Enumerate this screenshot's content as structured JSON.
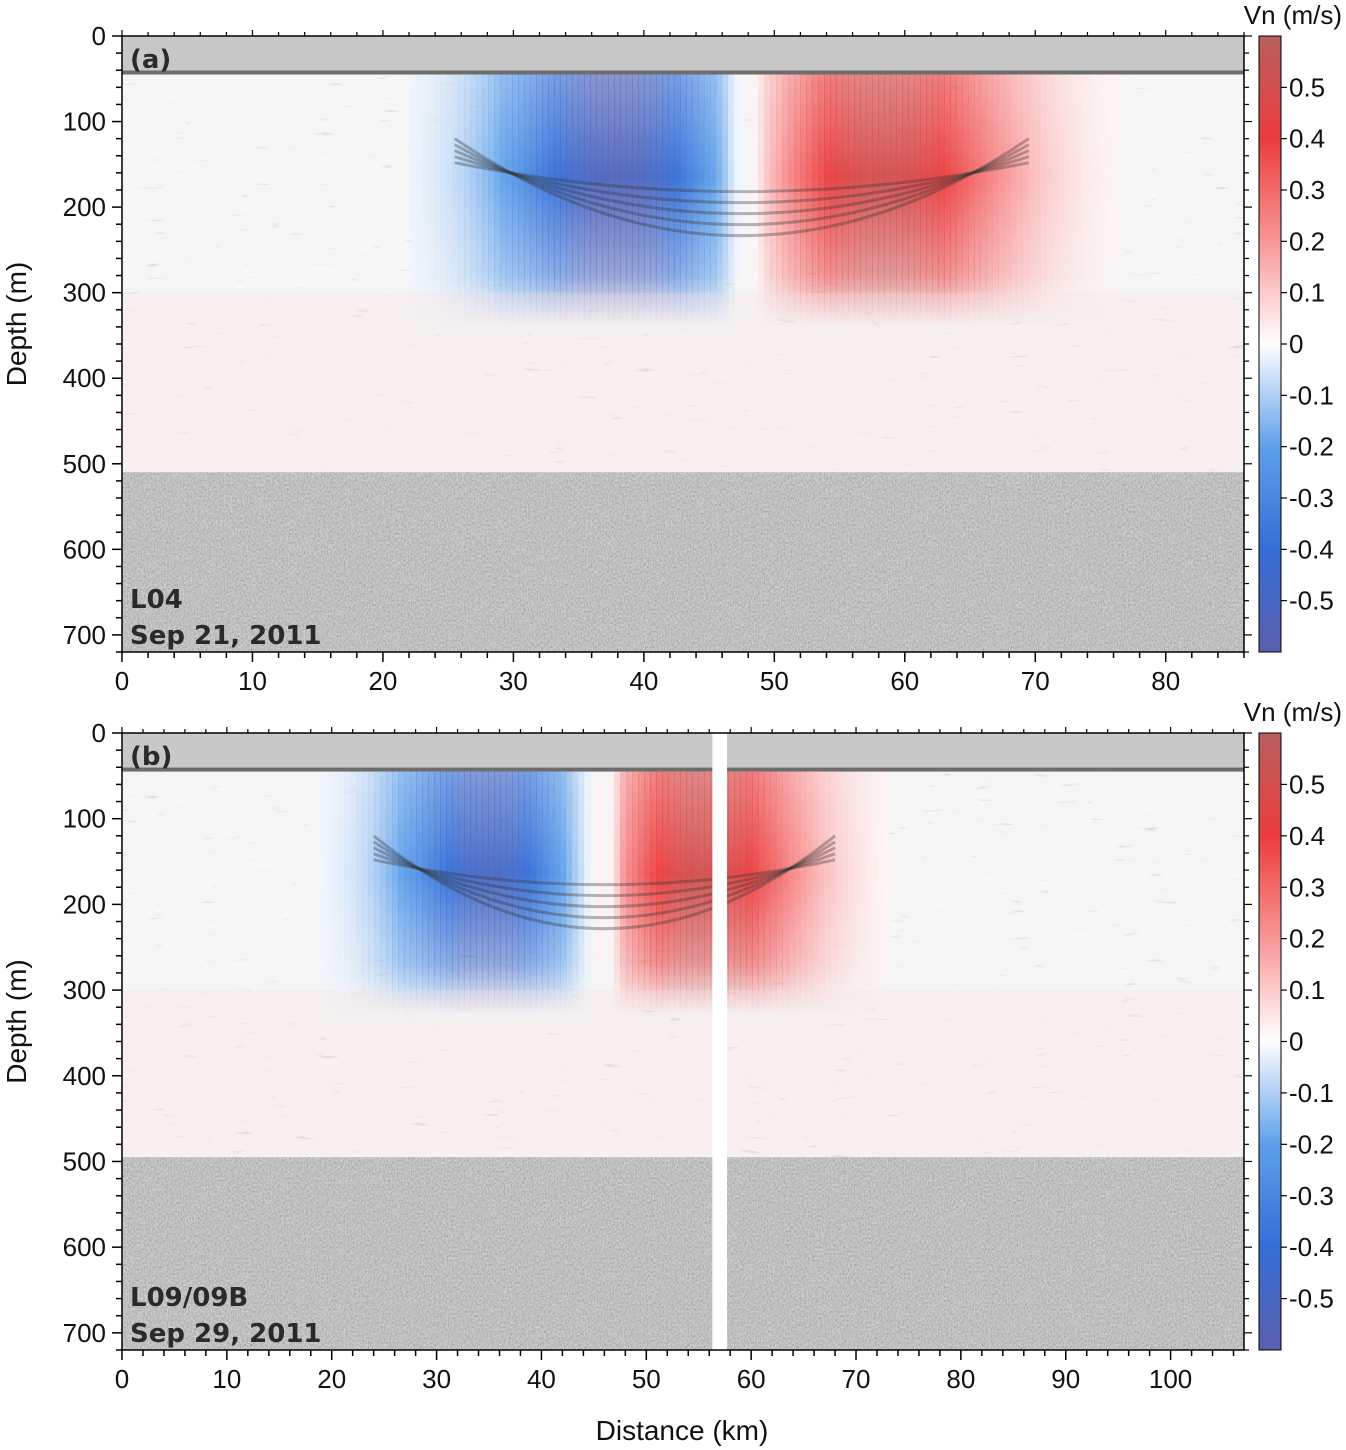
{
  "chart_data": [
    {
      "type": "heatmap",
      "panel_label": "(a)",
      "line_name": "L04",
      "date": "Sep 21, 2011",
      "xlabel": "",
      "ylabel": "Depth (m)",
      "xlim": [
        0,
        86
      ],
      "ylim": [
        0,
        720
      ],
      "y_inverted": true,
      "x_ticks": [
        0,
        10,
        20,
        30,
        40,
        50,
        60,
        70,
        80
      ],
      "y_ticks": [
        0,
        100,
        200,
        300,
        400,
        500,
        600,
        700
      ],
      "surface_mask_depth_m": 45,
      "velocity_cutoff_depth_m": 510,
      "gap_km": null,
      "eddy_cores": [
        {
          "sign": "negative",
          "x_km": 38,
          "depth_m": 165,
          "vn_ms": -0.55
        },
        {
          "sign": "positive",
          "x_km": 58,
          "depth_m": 165,
          "vn_ms": 0.5
        }
      ],
      "eddy_zero_crossing_km": 47.5,
      "eddy_base_depth_m": 300,
      "colorbar": {
        "title": "Vn (m/s)",
        "range": [
          -0.6,
          0.6
        ],
        "ticks": [
          0.5,
          0.4,
          0.3,
          0.2,
          0.1,
          0,
          -0.1,
          -0.2,
          -0.3,
          -0.4,
          -0.5
        ],
        "ticklabels": [
          "0.5",
          "0.4",
          "0.3",
          "0.2",
          "0.1",
          "0",
          "-0.1",
          "-0.2",
          "-0.3",
          "-0.4",
          "-0.5"
        ]
      }
    },
    {
      "type": "heatmap",
      "panel_label": "(b)",
      "line_name": "L09/09B",
      "date": "Sep 29, 2011",
      "xlabel": "Distance (km)",
      "ylabel": "Depth (m)",
      "xlim": [
        0,
        107
      ],
      "ylim": [
        0,
        720
      ],
      "y_inverted": true,
      "x_ticks": [
        0,
        10,
        20,
        30,
        40,
        50,
        60,
        70,
        80,
        90,
        100
      ],
      "y_ticks": [
        0,
        100,
        200,
        300,
        400,
        500,
        600,
        700
      ],
      "surface_mask_depth_m": 45,
      "velocity_cutoff_depth_m": 495,
      "gap_km": [
        56.3,
        57.7
      ],
      "eddy_cores": [
        {
          "sign": "negative",
          "x_km": 35,
          "depth_m": 170,
          "vn_ms": -0.5
        },
        {
          "sign": "positive",
          "x_km": 55,
          "depth_m": 160,
          "vn_ms": 0.5
        }
      ],
      "eddy_zero_crossing_km": 46,
      "eddy_base_depth_m": 290,
      "colorbar": {
        "title": "Vn (m/s)",
        "range": [
          -0.6,
          0.6
        ],
        "ticks": [
          0.5,
          0.4,
          0.3,
          0.2,
          0.1,
          0,
          -0.1,
          -0.2,
          -0.3,
          -0.4,
          -0.5
        ],
        "ticklabels": [
          "0.5",
          "0.4",
          "0.3",
          "0.2",
          "0.1",
          "0",
          "-0.1",
          "-0.2",
          "-0.3",
          "-0.4",
          "-0.5"
        ]
      }
    }
  ],
  "colors": {
    "negative": "#3c78d8",
    "negative_deep": "#5b5fb0",
    "positive": "#f04545",
    "positive_deep": "#b86262",
    "zero": "#ffffff",
    "seismic_base": "#bdbdbd"
  }
}
